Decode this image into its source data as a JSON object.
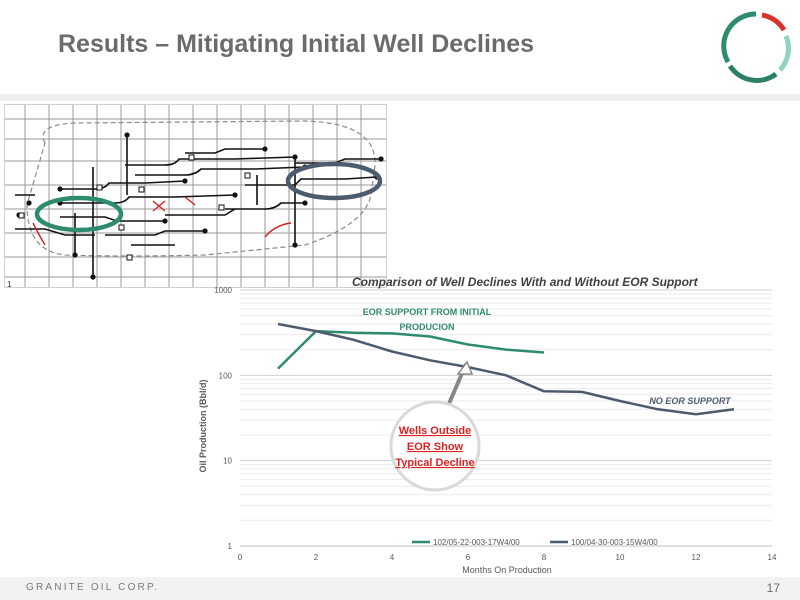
{
  "slide": {
    "title": "Results – Mitigating Initial Well Declines",
    "company": "GRANITE OIL CORP.",
    "page_number": "17",
    "map_corner_label": "1"
  },
  "logo": {
    "icon": "granite-ring-logo",
    "colors": {
      "teal": "#2e8b6f",
      "light_teal": "#8fd3c0",
      "red": "#d9312b"
    }
  },
  "callout": {
    "lines": [
      "Wells Outside",
      "EOR Show",
      "Typical Decline"
    ],
    "color": "#e02020"
  },
  "colors": {
    "title": "#6b6b6b",
    "eor_series": "#2e8b6f",
    "no_eor_series": "#4d5b6e",
    "map_lines": "#111111",
    "map_red": "#d92020"
  },
  "chart_data": {
    "type": "line",
    "title": "Comparison of Well Declines With and Without EOR Support",
    "xlabel": "Months On Production",
    "ylabel": "Oil Production (Bbl/d)",
    "xlim": [
      0,
      14
    ],
    "xticks": [
      "0",
      "2",
      "4",
      "6",
      "8",
      "10",
      "12",
      "14"
    ],
    "ylim": [
      1,
      1000
    ],
    "yscale": "log",
    "yticks": [
      "1",
      "10",
      "100",
      "1000"
    ],
    "grid": true,
    "legend_position": "bottom",
    "series": [
      {
        "name": "102/05-22-003-17W4/00",
        "color": "#2e8b6f",
        "x": [
          1,
          2,
          3,
          4,
          5,
          6,
          7,
          8
        ],
        "y": [
          120,
          330,
          315,
          310,
          285,
          230,
          200,
          185
        ]
      },
      {
        "name": "100/04-30-003-15W4/00",
        "color": "#4d5b6e",
        "x": [
          1,
          2,
          3,
          4,
          5,
          6,
          7,
          8,
          9,
          10,
          11,
          12,
          13
        ],
        "y": [
          400,
          330,
          260,
          190,
          150,
          125,
          100,
          65,
          64,
          50,
          40,
          35,
          40
        ]
      }
    ],
    "annotations": [
      {
        "text": "EOR SUPPORT FROM INITIAL",
        "color": "#2e8b6f"
      },
      {
        "text": "PRODUCION",
        "color": "#2e8b6f"
      },
      {
        "text": "NO EOR SUPPORT",
        "color": "#4d5b6e"
      }
    ]
  }
}
